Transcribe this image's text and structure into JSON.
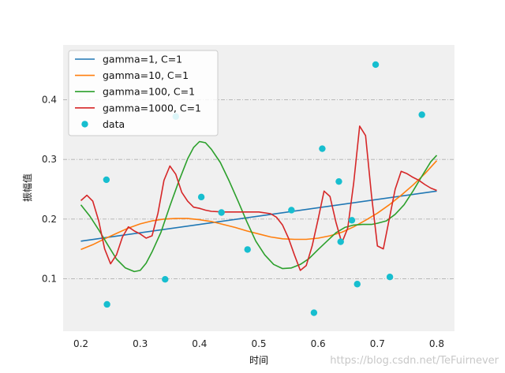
{
  "chart_data": {
    "type": "line",
    "title": "",
    "xlabel": "时间",
    "ylabel": "振幅值",
    "xlim": [
      0.17,
      0.83
    ],
    "ylim": [
      0.012,
      0.492
    ],
    "xticks": [
      "0.2",
      "0.3",
      "0.4",
      "0.5",
      "0.6",
      "0.7",
      "0.8"
    ],
    "yticks": [
      "0.1",
      "0.2",
      "0.3",
      "0.4"
    ],
    "grid": "horizontal-dashed",
    "legend_position": "top-left",
    "series": [
      {
        "name": "gamma=1, C=1",
        "color": "#1f77b4",
        "x": [
          0.2,
          0.8
        ],
        "y": [
          0.163,
          0.247
        ]
      },
      {
        "name": "gamma=10, C=1",
        "color": "#ff7f0e",
        "x": [
          0.2,
          0.22,
          0.24,
          0.26,
          0.28,
          0.3,
          0.32,
          0.34,
          0.36,
          0.38,
          0.4,
          0.42,
          0.44,
          0.46,
          0.48,
          0.5,
          0.52,
          0.54,
          0.56,
          0.58,
          0.6,
          0.62,
          0.64,
          0.66,
          0.68,
          0.7,
          0.72,
          0.74,
          0.76,
          0.78,
          0.8
        ],
        "y": [
          0.149,
          0.157,
          0.167,
          0.176,
          0.185,
          0.192,
          0.197,
          0.2,
          0.201,
          0.201,
          0.199,
          0.196,
          0.191,
          0.186,
          0.18,
          0.175,
          0.17,
          0.167,
          0.166,
          0.166,
          0.168,
          0.172,
          0.178,
          0.187,
          0.198,
          0.21,
          0.224,
          0.24,
          0.257,
          0.276,
          0.298
        ]
      },
      {
        "name": "gamma=100, C=1",
        "color": "#2ca02c",
        "x": [
          0.2,
          0.215,
          0.23,
          0.245,
          0.26,
          0.275,
          0.29,
          0.3,
          0.31,
          0.32,
          0.335,
          0.35,
          0.365,
          0.38,
          0.39,
          0.4,
          0.41,
          0.42,
          0.435,
          0.45,
          0.465,
          0.48,
          0.495,
          0.51,
          0.525,
          0.54,
          0.555,
          0.57,
          0.585,
          0.6,
          0.615,
          0.63,
          0.645,
          0.66,
          0.675,
          0.69,
          0.7,
          0.715,
          0.73,
          0.745,
          0.76,
          0.775,
          0.79,
          0.8
        ],
        "y": [
          0.224,
          0.205,
          0.182,
          0.157,
          0.133,
          0.118,
          0.112,
          0.114,
          0.126,
          0.145,
          0.178,
          0.222,
          0.263,
          0.301,
          0.32,
          0.33,
          0.328,
          0.317,
          0.295,
          0.264,
          0.23,
          0.195,
          0.163,
          0.14,
          0.124,
          0.117,
          0.118,
          0.124,
          0.134,
          0.149,
          0.163,
          0.177,
          0.186,
          0.19,
          0.191,
          0.191,
          0.193,
          0.197,
          0.208,
          0.224,
          0.247,
          0.272,
          0.296,
          0.307
        ]
      },
      {
        "name": "gamma=1000, C=1",
        "color": "#d62728",
        "x": [
          0.2,
          0.21,
          0.22,
          0.23,
          0.24,
          0.25,
          0.26,
          0.27,
          0.28,
          0.29,
          0.3,
          0.31,
          0.32,
          0.33,
          0.34,
          0.35,
          0.36,
          0.37,
          0.38,
          0.39,
          0.4,
          0.41,
          0.42,
          0.44,
          0.46,
          0.5,
          0.52,
          0.53,
          0.54,
          0.55,
          0.56,
          0.57,
          0.58,
          0.59,
          0.6,
          0.61,
          0.62,
          0.63,
          0.64,
          0.65,
          0.66,
          0.67,
          0.68,
          0.69,
          0.7,
          0.71,
          0.72,
          0.73,
          0.74,
          0.75,
          0.76,
          0.77,
          0.78,
          0.79,
          0.8
        ],
        "y": [
          0.231,
          0.24,
          0.23,
          0.197,
          0.15,
          0.125,
          0.14,
          0.17,
          0.187,
          0.18,
          0.175,
          0.168,
          0.172,
          0.21,
          0.265,
          0.289,
          0.275,
          0.245,
          0.23,
          0.22,
          0.218,
          0.215,
          0.213,
          0.212,
          0.212,
          0.212,
          0.209,
          0.203,
          0.19,
          0.168,
          0.14,
          0.114,
          0.122,
          0.155,
          0.2,
          0.247,
          0.238,
          0.195,
          0.16,
          0.185,
          0.26,
          0.356,
          0.34,
          0.24,
          0.155,
          0.15,
          0.2,
          0.25,
          0.28,
          0.276,
          0.27,
          0.265,
          0.258,
          0.252,
          0.248
        ]
      }
    ],
    "scatter": {
      "name": "data",
      "color": "#17becf",
      "x": [
        0.243,
        0.244,
        0.342,
        0.36,
        0.403,
        0.437,
        0.481,
        0.555,
        0.593,
        0.607,
        0.635,
        0.638,
        0.657,
        0.666,
        0.697,
        0.721,
        0.775
      ],
      "y": [
        0.266,
        0.057,
        0.099,
        0.372,
        0.237,
        0.211,
        0.149,
        0.215,
        0.043,
        0.318,
        0.263,
        0.162,
        0.198,
        0.091,
        0.459,
        0.103,
        0.375
      ]
    }
  },
  "watermark": "https://blog.csdn.net/TeFuirnever"
}
